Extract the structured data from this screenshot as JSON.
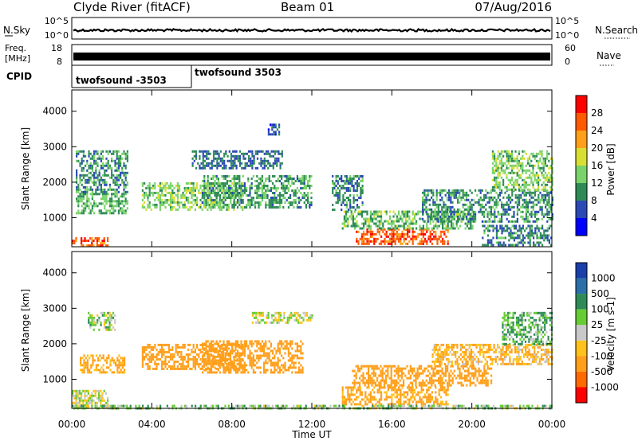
{
  "header": {
    "station": "Clyde River (fitACF)",
    "beam": "Beam 01",
    "date": "07/Aug/2016"
  },
  "noise_panel": {
    "left_label": "N.Sky",
    "right_label": "N.Search",
    "left_ticks": [
      "10^5",
      "10^0"
    ],
    "right_ticks": [
      "10^5",
      "10^0"
    ]
  },
  "freq_panel": {
    "left_label_line1": "Freq.",
    "left_label_line2": "[MHz]",
    "left_ticks": [
      "18",
      "8"
    ],
    "right_label": "Nave",
    "right_ticks": [
      "60",
      "0"
    ]
  },
  "cpid_panel": {
    "label": "CPID",
    "segments": [
      {
        "label": "twofsound -3503",
        "start_hour": 0,
        "end_hour": 6
      },
      {
        "label": "twofsound 3503",
        "start_hour": 6,
        "end_hour": 24
      }
    ]
  },
  "power_colorbar": {
    "label": "Power [dB]",
    "ticks": [
      "4",
      "8",
      "12",
      "16",
      "20",
      "24",
      "28"
    ],
    "colors": [
      "#0000ff",
      "#2a49b5",
      "#2e8b57",
      "#7ad36a",
      "#d9df32",
      "#ff9f1a",
      "#ff5a00",
      "#ff0000"
    ]
  },
  "velocity_colorbar": {
    "label": "Velocity [m s-1]",
    "ticks": [
      "1000",
      "500",
      "100",
      "25",
      "-25",
      "-100",
      "-500",
      "-1000"
    ],
    "colors": [
      "#1a3faa",
      "#2a6fa8",
      "#2e8b57",
      "#66cc33",
      "#c8c8c8",
      "#ffc21a",
      "#ff9f1a",
      "#ff6a00",
      "#ff0000"
    ]
  },
  "x_axis": {
    "label": "Time UT",
    "ticks": [
      "00:00",
      "04:00",
      "08:00",
      "12:00",
      "16:00",
      "20:00",
      "00:00"
    ]
  },
  "icons": {
    "search_dots": "dotted-line-icon"
  },
  "chart_data": [
    {
      "type": "heatmap",
      "name": "Power",
      "ylabel": "Slant Range [km]",
      "xlabel": "",
      "xlim": [
        0,
        24
      ],
      "ylim": [
        180,
        4600
      ],
      "yticks": [
        1000,
        2000,
        3000,
        4000
      ],
      "ytick_labels": [
        "1000",
        "2000",
        "3000",
        "4000"
      ],
      "value_range": [
        0,
        30
      ],
      "regions": [
        {
          "t0": 0,
          "t1": 1.8,
          "r0": 200,
          "r1": 450,
          "value": 27
        },
        {
          "t0": 0.2,
          "t1": 2.8,
          "r0": 1100,
          "r1": 1700,
          "value": 12
        },
        {
          "t0": 0.2,
          "t1": 2.8,
          "r0": 1700,
          "r1": 2900,
          "value": 10
        },
        {
          "t0": 3.5,
          "t1": 8.5,
          "r0": 1200,
          "r1": 2000,
          "value": 14
        },
        {
          "t0": 6,
          "t1": 10.5,
          "r0": 2400,
          "r1": 2900,
          "value": 8
        },
        {
          "t0": 6.5,
          "t1": 12,
          "r0": 1300,
          "r1": 2200,
          "value": 11
        },
        {
          "t0": 9.8,
          "t1": 10.4,
          "r0": 3350,
          "r1": 3650,
          "value": 7
        },
        {
          "t0": 13,
          "t1": 14.5,
          "r0": 1200,
          "r1": 2200,
          "value": 9
        },
        {
          "t0": 14.2,
          "t1": 18.8,
          "r0": 250,
          "r1": 700,
          "value": 26
        },
        {
          "t0": 13.5,
          "t1": 20,
          "r0": 700,
          "r1": 1200,
          "value": 13
        },
        {
          "t0": 17.5,
          "t1": 24,
          "r0": 900,
          "r1": 1800,
          "value": 10
        },
        {
          "t0": 21,
          "t1": 24,
          "r0": 1800,
          "r1": 2900,
          "value": 14
        },
        {
          "t0": 20.5,
          "t1": 24,
          "r0": 200,
          "r1": 800,
          "value": 9
        }
      ]
    },
    {
      "type": "heatmap",
      "name": "Velocity",
      "ylabel": "Slant Range [km]",
      "xlabel": "Time UT",
      "xlim": [
        0,
        24
      ],
      "ylim": [
        180,
        4600
      ],
      "yticks": [
        1000,
        2000,
        3000,
        4000
      ],
      "ytick_labels": [
        "1000",
        "2000",
        "3000",
        "4000"
      ],
      "value_range": [
        -1000,
        1000
      ],
      "regions": [
        {
          "t0": 0,
          "t1": 1.8,
          "r0": 200,
          "r1": 700,
          "value": 0
        },
        {
          "t0": 0.4,
          "t1": 2.6,
          "r0": 1200,
          "r1": 1700,
          "value": -150
        },
        {
          "t0": 0.8,
          "t1": 2.2,
          "r0": 2400,
          "r1": 2900,
          "value": 40
        },
        {
          "t0": 3.5,
          "t1": 8.5,
          "r0": 1300,
          "r1": 2000,
          "value": -300
        },
        {
          "t0": 6.5,
          "t1": 11.5,
          "r0": 1200,
          "r1": 2100,
          "value": -250
        },
        {
          "t0": 9,
          "t1": 12,
          "r0": 2600,
          "r1": 2900,
          "value": 0
        },
        {
          "t0": 13.5,
          "t1": 18.8,
          "r0": 300,
          "r1": 800,
          "value": -150
        },
        {
          "t0": 14,
          "t1": 21,
          "r0": 800,
          "r1": 1400,
          "value": -400
        },
        {
          "t0": 18,
          "t1": 24,
          "r0": 1400,
          "r1": 2000,
          "value": -100
        },
        {
          "t0": 21.5,
          "t1": 24,
          "r0": 2000,
          "r1": 2900,
          "value": 100
        },
        {
          "t0": 0,
          "t1": 24,
          "r0": 180,
          "r1": 280,
          "value": 60
        }
      ]
    }
  ]
}
